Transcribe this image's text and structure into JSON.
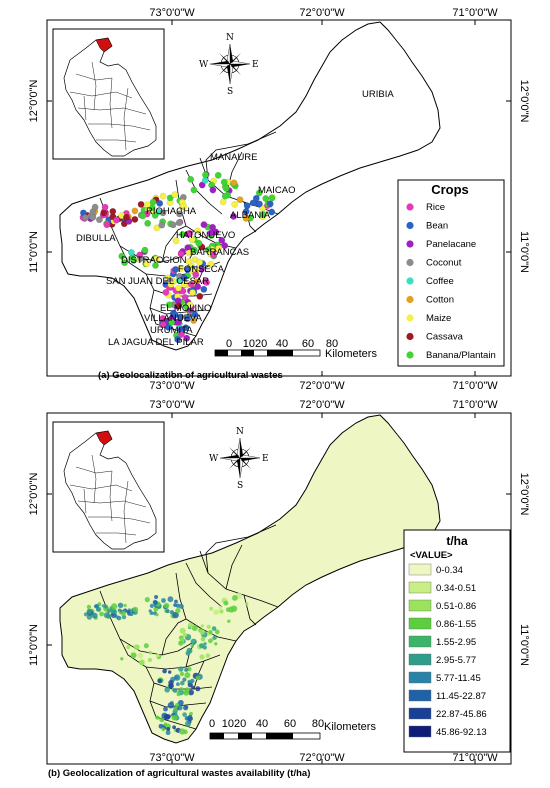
{
  "panel_a": {
    "top_coords": [
      "73°0'0\"W",
      "72°0'0\"W",
      "71°0'0\"W"
    ],
    "bottom_coords": [
      "73°0'0\"W",
      "72°0'0\"W",
      "71°0'0\"W"
    ],
    "left_coords": [
      "12°0'0\"N",
      "11°0'0\"N"
    ],
    "right_coords": [
      "12°0'0\"N",
      "11°0'0\"N"
    ],
    "places": [
      "URIBIA",
      "MANAURE",
      "MAICAO",
      "RIOHACHA",
      "ALBANIA",
      "DIBULLA",
      "HATONUEVO",
      "BARRANCAS",
      "DISTRACCION",
      "FONSECA",
      "SAN JUAN DEL CESAR",
      "EL MOLINO",
      "VILLANUEVA",
      "URUMITA",
      "LA JAGUA DEL PILAR"
    ],
    "legend": {
      "title": "Crops",
      "items": [
        {
          "label": "Rice",
          "color": "#e23bb4"
        },
        {
          "label": "Bean",
          "color": "#2a62c9"
        },
        {
          "label": "Panelacane",
          "color": "#a21fc4"
        },
        {
          "label": "Coconut",
          "color": "#8c8c8c"
        },
        {
          "label": "Coffee",
          "color": "#38e0c2"
        },
        {
          "label": "Cotton",
          "color": "#e4a21e"
        },
        {
          "label": "Maize",
          "color": "#f4f04a"
        },
        {
          "label": "Cassava",
          "color": "#a01a24"
        },
        {
          "label": "Banana/Plantain",
          "color": "#3fd433"
        }
      ]
    },
    "scale": {
      "ticks": [
        "0",
        "1020",
        "40",
        "60",
        "80"
      ],
      "unit": "Kilometers"
    },
    "compass": {
      "n": "N",
      "s": "S",
      "e": "E",
      "w": "W"
    },
    "caption": "(a) Geolocalization of agricultural wastes"
  },
  "panel_b": {
    "top_coords": [
      "73°0'0\"W",
      "72°0'0\"W",
      "71°0'0\"W"
    ],
    "bottom_coords": [
      "73°0'0\"W",
      "72°0'0\"W",
      "71°0'0\"W"
    ],
    "left_coords": [
      "12°0'0\"N",
      "11°0'0\"N"
    ],
    "right_coords": [
      "12°0'0\"N",
      "11°0'0\"N"
    ],
    "legend": {
      "title": "t/ha",
      "subtitle": "<VALUE>",
      "items": [
        {
          "label": "0-0.34",
          "color": "#eef7c3"
        },
        {
          "label": "0.34-0.51",
          "color": "#c8ef86"
        },
        {
          "label": "0.51-0.86",
          "color": "#9ae45c"
        },
        {
          "label": "0.86-1.55",
          "color": "#5ccf3e"
        },
        {
          "label": "1.55-2.95",
          "color": "#3cb56a"
        },
        {
          "label": "2.95-5.77",
          "color": "#2f9c8c"
        },
        {
          "label": "5.77-11.45",
          "color": "#2784a8"
        },
        {
          "label": "11.45-22.87",
          "color": "#1f62a8"
        },
        {
          "label": "22.87-45.86",
          "color": "#1a3f96"
        },
        {
          "label": "45.86-92.13",
          "color": "#101d78"
        }
      ]
    },
    "scale": {
      "ticks": [
        "0",
        "1020",
        "40",
        "60",
        "80"
      ],
      "unit": "Kilometers"
    },
    "compass": {
      "n": "N",
      "s": "S",
      "e": "E",
      "w": "W"
    },
    "caption": "(b) Geolocalization of agricultural wastes availability (t/ha)"
  }
}
